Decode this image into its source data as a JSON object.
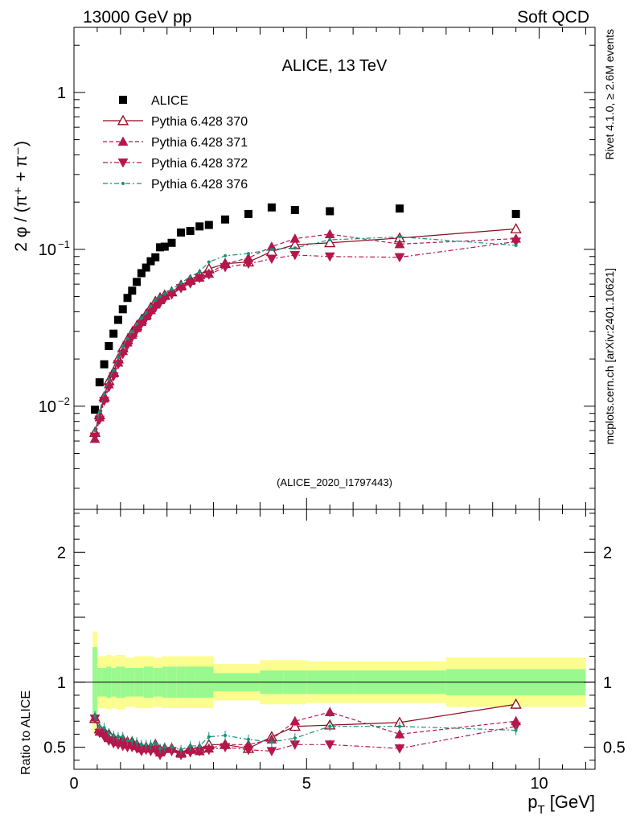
{
  "header": {
    "left": "13000 GeV pp",
    "right": "Soft QCD"
  },
  "side": {
    "top": "Rivet 4.1.0, ≥ 2.6M events",
    "bottom": "mcplots.cern.ch [arXiv:2401.10621]"
  },
  "colors": {
    "alice": "#000000",
    "p370": "#8b0a1e",
    "p371": "#b5174b",
    "p372": "#b5174b",
    "p376": "#16907c",
    "band_inner": "#99f98f",
    "band_outer": "#fbfd8f"
  },
  "chart_data": [
    {
      "type": "scatter",
      "panel": "main",
      "title": "ALICE, 13 TeV",
      "ylabel": "2 φ / (π⁺ + π⁻)",
      "yscale": "log",
      "ylim": [
        0.0022,
        2.6
      ],
      "xlim": [
        0,
        11.2
      ],
      "yticks": [
        {
          "value": 0.01,
          "base": "10",
          "exp": "−2"
        },
        {
          "value": 0.1,
          "base": "10",
          "exp": "−1"
        },
        {
          "value": 1,
          "label": "1"
        }
      ],
      "analysis_id": "(ALICE_2020_I1797443)",
      "legend": [
        "ALICE",
        "Pythia 6.428 370",
        "Pythia 6.428 371",
        "Pythia 6.428 372",
        "Pythia 6.428 376"
      ],
      "x": [
        0.45,
        0.55,
        0.65,
        0.75,
        0.85,
        0.95,
        1.05,
        1.15,
        1.25,
        1.35,
        1.45,
        1.55,
        1.65,
        1.75,
        1.85,
        1.95,
        2.1,
        2.3,
        2.5,
        2.7,
        2.9,
        3.25,
        3.75,
        4.25,
        4.75,
        5.5,
        7.0,
        9.5
      ],
      "series": [
        {
          "name": "ALICE",
          "marker": "square",
          "values": [
            0.0095,
            0.0142,
            0.0185,
            0.0242,
            0.029,
            0.0355,
            0.0415,
            0.049,
            0.0545,
            0.062,
            0.0705,
            0.0765,
            0.084,
            0.089,
            0.103,
            0.104,
            0.11,
            0.128,
            0.131,
            0.14,
            0.143,
            0.155,
            0.168,
            0.185,
            0.178,
            0.175,
            0.182,
            0.168
          ]
        },
        {
          "name": "Pythia 6.428 370",
          "marker": "triangle-up-open",
          "line": "solid",
          "values": [
            0.0068,
            0.0088,
            0.0115,
            0.0145,
            0.0165,
            0.02,
            0.0235,
            0.0265,
            0.0295,
            0.0325,
            0.0355,
            0.0385,
            0.0425,
            0.0465,
            0.049,
            0.051,
            0.0535,
            0.059,
            0.064,
            0.069,
            0.075,
            0.081,
            0.083,
            0.097,
            0.107,
            0.11,
            0.118,
            0.135
          ]
        },
        {
          "name": "Pythia 6.428 371",
          "marker": "triangle-up",
          "line": "dashed",
          "values": [
            0.0062,
            0.0085,
            0.0112,
            0.0138,
            0.0162,
            0.019,
            0.0225,
            0.0255,
            0.0285,
            0.0315,
            0.0345,
            0.0375,
            0.041,
            0.0445,
            0.0475,
            0.0505,
            0.054,
            0.058,
            0.063,
            0.066,
            0.07,
            0.081,
            0.088,
            0.104,
            0.117,
            0.125,
            0.108,
            0.117
          ]
        },
        {
          "name": "Pythia 6.428 372",
          "marker": "triangle-down",
          "line": "dashdot",
          "values": [
            0.0064,
            0.0082,
            0.0108,
            0.0132,
            0.0155,
            0.0185,
            0.0215,
            0.0245,
            0.0275,
            0.0305,
            0.0335,
            0.0365,
            0.0395,
            0.0425,
            0.0455,
            0.0485,
            0.0515,
            0.0565,
            0.0605,
            0.0655,
            0.069,
            0.077,
            0.081,
            0.087,
            0.092,
            0.09,
            0.089,
            0.112
          ]
        },
        {
          "name": "Pythia 6.428 376",
          "marker": "dot",
          "line": "dashdot",
          "values": [
            0.007,
            0.0092,
            0.012,
            0.0148,
            0.017,
            0.0205,
            0.024,
            0.027,
            0.03,
            0.0335,
            0.0365,
            0.0395,
            0.0435,
            0.0475,
            0.05,
            0.052,
            0.0555,
            0.061,
            0.067,
            0.072,
            0.083,
            0.091,
            0.094,
            0.1,
            0.102,
            0.115,
            0.12,
            0.106
          ]
        }
      ]
    },
    {
      "type": "scatter",
      "panel": "ratio",
      "ylabel": "Ratio to ALICE",
      "xlabel": "p_T [GeV]",
      "ylim": [
        0.33,
        2.33
      ],
      "xlim": [
        0,
        11.2
      ],
      "xticks": [
        0,
        5,
        10
      ],
      "yticks": [
        0.5,
        1,
        2
      ],
      "bins": [
        [
          0.4,
          0.5
        ],
        [
          0.5,
          0.6
        ],
        [
          0.6,
          0.7
        ],
        [
          0.7,
          0.8
        ],
        [
          0.8,
          0.9
        ],
        [
          0.9,
          1.0
        ],
        [
          1.0,
          1.1
        ],
        [
          1.1,
          1.2
        ],
        [
          1.2,
          1.3
        ],
        [
          1.3,
          1.4
        ],
        [
          1.4,
          1.5
        ],
        [
          1.5,
          1.6
        ],
        [
          1.6,
          1.7
        ],
        [
          1.7,
          1.8
        ],
        [
          1.8,
          1.9
        ],
        [
          1.9,
          2.0
        ],
        [
          2.0,
          2.2
        ],
        [
          2.2,
          2.4
        ],
        [
          2.4,
          2.6
        ],
        [
          2.6,
          2.8
        ],
        [
          2.8,
          3.0
        ],
        [
          3.0,
          3.5
        ],
        [
          3.5,
          4.0
        ],
        [
          4.0,
          4.5
        ],
        [
          4.5,
          5.0
        ],
        [
          5.0,
          6.0
        ],
        [
          6.0,
          8.0
        ],
        [
          8.0,
          11.0
        ]
      ],
      "band_inner": [
        0.27,
        0.11,
        0.11,
        0.12,
        0.11,
        0.12,
        0.12,
        0.11,
        0.11,
        0.11,
        0.11,
        0.12,
        0.12,
        0.11,
        0.11,
        0.12,
        0.12,
        0.12,
        0.12,
        0.12,
        0.12,
        0.07,
        0.07,
        0.09,
        0.09,
        0.09,
        0.09,
        0.1
      ],
      "band_outer": [
        0.39,
        0.2,
        0.2,
        0.21,
        0.2,
        0.21,
        0.21,
        0.19,
        0.19,
        0.2,
        0.2,
        0.2,
        0.2,
        0.19,
        0.19,
        0.2,
        0.2,
        0.2,
        0.2,
        0.2,
        0.2,
        0.14,
        0.14,
        0.17,
        0.17,
        0.16,
        0.16,
        0.19
      ],
      "series": [
        {
          "name": "Pythia 6.428 370",
          "values": [
            0.72,
            0.64,
            0.62,
            0.6,
            0.57,
            0.56,
            0.56,
            0.54,
            0.54,
            0.52,
            0.5,
            0.5,
            0.5,
            0.52,
            0.48,
            0.49,
            0.49,
            0.46,
            0.49,
            0.49,
            0.52,
            0.52,
            0.49,
            0.58,
            0.66,
            0.67,
            0.69,
            0.83
          ]
        },
        {
          "name": "Pythia 6.428 371",
          "values": [
            0.73,
            0.62,
            0.61,
            0.57,
            0.56,
            0.54,
            0.55,
            0.52,
            0.53,
            0.51,
            0.49,
            0.49,
            0.49,
            0.5,
            0.46,
            0.49,
            0.49,
            0.45,
            0.48,
            0.47,
            0.49,
            0.52,
            0.52,
            0.56,
            0.7,
            0.77,
            0.6,
            0.7
          ]
        },
        {
          "name": "Pythia 6.428 372",
          "values": [
            0.72,
            0.61,
            0.58,
            0.55,
            0.53,
            0.52,
            0.51,
            0.5,
            0.5,
            0.49,
            0.47,
            0.48,
            0.47,
            0.48,
            0.44,
            0.47,
            0.47,
            0.44,
            0.46,
            0.47,
            0.48,
            0.5,
            0.48,
            0.47,
            0.52,
            0.52,
            0.49,
            0.66
          ]
        },
        {
          "name": "Pythia 6.428 376",
          "values": [
            0.74,
            0.66,
            0.65,
            0.61,
            0.59,
            0.58,
            0.58,
            0.55,
            0.55,
            0.54,
            0.52,
            0.52,
            0.52,
            0.53,
            0.49,
            0.5,
            0.5,
            0.48,
            0.51,
            0.51,
            0.58,
            0.59,
            0.56,
            0.54,
            0.57,
            0.66,
            0.66,
            0.63
          ]
        }
      ]
    }
  ]
}
